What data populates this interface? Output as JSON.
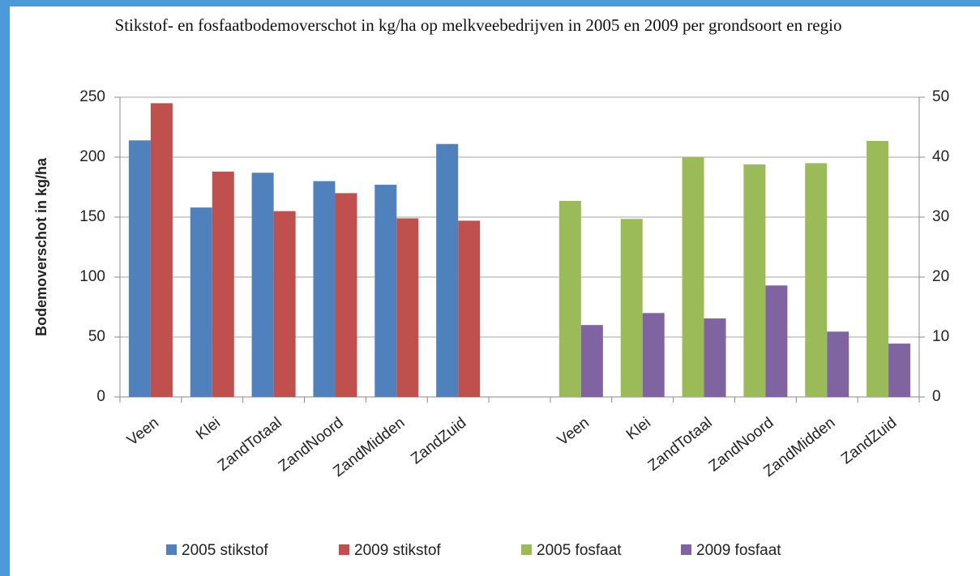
{
  "chart_data": {
    "type": "bar",
    "title": "Stikstof- en fosfaatbodemoverschot in kg/ha op melkveebedrijven  in 2005  en 2009  per grondsoort en regio",
    "ylabel": "Bodemoverschot in kg/ha",
    "categories": [
      "Veen",
      "Klei",
      "ZandTotaal",
      "ZandNoord",
      "ZandMidden",
      "ZandZuid",
      null,
      "Veen",
      "Klei",
      "ZandTotaal",
      "ZandNoord",
      "ZandMidden",
      "ZandZuid"
    ],
    "series": [
      {
        "name": "2005 stikstof",
        "color": "#4f81bd",
        "values": [
          214,
          158,
          187,
          180,
          177,
          211,
          null,
          null,
          null,
          null,
          null,
          null,
          null
        ]
      },
      {
        "name": "2009 stikstof",
        "color": "#c0504d",
        "values": [
          245,
          188,
          155,
          170,
          149,
          147,
          null,
          null,
          null,
          null,
          null,
          null,
          null
        ]
      },
      {
        "name": "2005 fosfaat",
        "color": "#9bbb59",
        "axis": "y2",
        "values": [
          null,
          null,
          null,
          null,
          null,
          null,
          null,
          32.7,
          29.7,
          40,
          38.8,
          39,
          42.7
        ]
      },
      {
        "name": "2009 fosfaat",
        "color": "#8064a2",
        "axis": "y2",
        "values": [
          null,
          null,
          null,
          null,
          null,
          null,
          null,
          12,
          14,
          13.1,
          18.6,
          10.9,
          8.9
        ]
      }
    ],
    "ylim": [
      0,
      250
    ],
    "yticks": [
      0,
      50,
      100,
      150,
      200,
      250
    ],
    "y2lim": [
      0,
      50
    ],
    "y2ticks": [
      0,
      10,
      20,
      30,
      40,
      50
    ],
    "grid": true,
    "legend": "bottom"
  }
}
